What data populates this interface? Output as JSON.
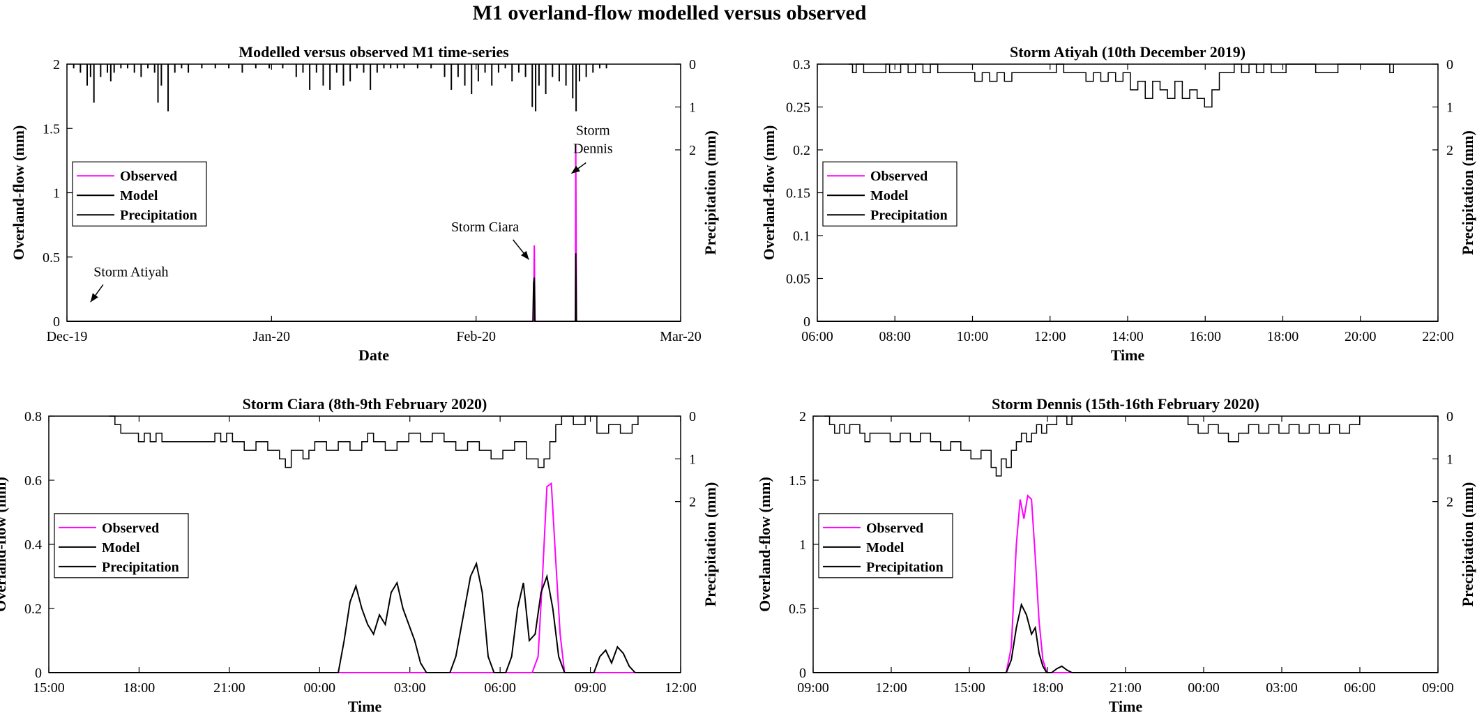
{
  "figure": {
    "title": "M1 overland-flow modelled versus observed"
  },
  "colors": {
    "observed": "#ff00ff",
    "model": "#000000",
    "precipitation": "#000000",
    "axis": "#000000"
  },
  "chart_data": [
    {
      "type": "line",
      "title": "Modelled versus observed M1 time-series",
      "xlabel": "Date",
      "ylabel": "Overland-flow (mm)",
      "y2label": "Precipitation (mm)",
      "xticks": [
        "Dec-19",
        "Jan-20",
        "Feb-20",
        "Mar-20"
      ],
      "yticks": [
        "0",
        "0.5",
        "1",
        "1.5",
        "2"
      ],
      "y2ticks": [
        "0",
        "1",
        "2"
      ],
      "ylim": [
        0,
        2
      ],
      "y2lim": [
        0,
        6
      ],
      "xlim": [
        0,
        91
      ],
      "legend": {
        "placement": "middle-left",
        "entries": [
          "Observed",
          "Model",
          "Precipitation"
        ]
      },
      "annotations": [
        {
          "text": "Storm Atiyah",
          "x": 9.5,
          "y": 0.35,
          "arrow_to": [
            3.5,
            0.15
          ]
        },
        {
          "text": "Storm Ciara",
          "x": 62,
          "y": 0.7,
          "arrow_to": [
            68.5,
            0.48
          ]
        },
        {
          "text": "Storm Dennis",
          "lines": [
            "Storm",
            "Dennis"
          ],
          "x": 78,
          "y": 1.45,
          "arrow_to": [
            74.8,
            1.15
          ]
        }
      ],
      "series": [
        {
          "name": "Observed",
          "color": "#ff00ff",
          "x": [
            0,
            69.2,
            69.3,
            69.4,
            75.4,
            75.45,
            75.55,
            91
          ],
          "values": [
            0,
            0,
            0.59,
            0,
            0,
            1.38,
            0,
            0
          ]
        },
        {
          "name": "Model",
          "color": "#000000",
          "x": [
            0,
            69.1,
            69.2,
            69.3,
            69.4,
            75.4,
            75.45,
            75.55,
            91
          ],
          "values": [
            0,
            0,
            0.3,
            0.34,
            0,
            0,
            0.53,
            0,
            0
          ]
        },
        {
          "name": "Precipitation",
          "color": "#000000",
          "bars": true,
          "x": [
            1,
            2,
            3,
            3.5,
            4,
            5,
            6,
            6.5,
            7,
            8,
            9,
            10,
            11,
            12,
            13,
            13.5,
            14,
            15,
            16,
            17,
            18,
            20,
            22,
            24,
            26,
            28,
            30,
            32,
            34,
            35,
            36,
            37,
            38,
            39,
            40,
            41,
            42,
            43,
            44,
            45,
            46,
            47,
            48,
            49,
            50,
            52,
            54,
            56,
            57,
            58,
            59,
            60,
            61,
            62,
            63,
            64,
            65,
            66,
            67,
            68,
            69,
            69.5,
            70,
            71,
            72,
            73,
            74,
            75,
            75.5,
            76,
            77,
            78,
            79,
            80
          ],
          "values": [
            0.1,
            0.2,
            0.5,
            0.3,
            0.9,
            0.3,
            0.2,
            0.4,
            0.2,
            0.1,
            0.1,
            0.2,
            0.3,
            0.1,
            0.2,
            0.9,
            0.5,
            1.1,
            0.2,
            0.1,
            0.2,
            0.1,
            0.1,
            0.1,
            0.2,
            0.1,
            0.1,
            0.1,
            0.3,
            0.2,
            0.6,
            0.2,
            0.5,
            0.6,
            0.2,
            0.5,
            0.4,
            0.1,
            0.2,
            0.6,
            0.2,
            0.1,
            0.1,
            0.1,
            0.1,
            0.1,
            0.1,
            0.3,
            0.6,
            0.3,
            0.5,
            0.7,
            0.4,
            0.2,
            0.5,
            0.2,
            0.1,
            0.4,
            0.2,
            0.3,
            1.0,
            1.1,
            0.5,
            0.7,
            0.3,
            0.4,
            0.5,
            0.8,
            1.1,
            0.4,
            0.3,
            0.2,
            0.1,
            0.1
          ]
        }
      ]
    },
    {
      "type": "line",
      "title": "Storm Atiyah (10th December 2019)",
      "xlabel": "Time",
      "ylabel": "Overland-flow (mm)",
      "y2label": "Precipitation (mm)",
      "xticks": [
        "06:00",
        "08:00",
        "10:00",
        "12:00",
        "14:00",
        "16:00",
        "18:00",
        "20:00",
        "22:00"
      ],
      "yticks": [
        "0",
        "0.05",
        "0.1",
        "0.15",
        "0.2",
        "0.25",
        "0.3"
      ],
      "y2ticks": [
        "0",
        "1",
        "2"
      ],
      "ylim": [
        0,
        0.3
      ],
      "y2lim": [
        0,
        6
      ],
      "xlim": [
        5.75,
        22.5
      ],
      "legend": {
        "placement": "middle-left",
        "entries": [
          "Observed",
          "Model",
          "Precipitation"
        ]
      },
      "series": [
        {
          "name": "Observed",
          "color": "#ff00ff",
          "x": [
            5.75,
            22.5
          ],
          "values": [
            0,
            0
          ]
        },
        {
          "name": "Model",
          "color": "#000000",
          "x": [
            5.75,
            22.5
          ],
          "values": [
            0,
            0
          ]
        },
        {
          "name": "Precipitation",
          "color": "#000000",
          "step": true,
          "x": [
            6.6,
            6.7,
            6.8,
            7.0,
            7.2,
            7.6,
            7.7,
            8.0,
            8.2,
            8.4,
            8.6,
            8.8,
            9.0,
            9.4,
            9.8,
            10.0,
            10.2,
            10.4,
            10.6,
            10.8,
            11.0,
            11.2,
            11.6,
            12.0,
            12.2,
            12.4,
            12.6,
            12.8,
            13.0,
            13.2,
            13.4,
            13.6,
            13.8,
            14.0,
            14.2,
            14.4,
            14.6,
            14.8,
            15.0,
            15.2,
            15.4,
            15.6,
            15.8,
            16.0,
            16.2,
            16.4,
            16.6,
            16.8,
            17.0,
            17.2,
            17.4,
            17.6,
            17.8,
            18.0,
            18.4,
            19.2,
            19.8,
            21.2,
            21.3
          ],
          "values": [
            0,
            0.2,
            0,
            0.2,
            0.2,
            0,
            0.2,
            0,
            0.2,
            0,
            0.2,
            0,
            0.2,
            0.2,
            0.2,
            0.4,
            0.2,
            0.4,
            0.2,
            0.4,
            0.2,
            0.2,
            0.2,
            0.2,
            0,
            0.2,
            0.2,
            0.2,
            0.4,
            0.2,
            0.4,
            0.2,
            0.4,
            0.2,
            0.6,
            0.4,
            0.8,
            0.4,
            0.6,
            0.8,
            0.4,
            0.8,
            0.6,
            0.8,
            1.0,
            0.6,
            0.2,
            0.2,
            0,
            0.2,
            0,
            0.2,
            0,
            0.2,
            0,
            0.2,
            0,
            0.2,
            0
          ]
        }
      ]
    },
    {
      "type": "line",
      "title": "Storm Ciara (8th-9th February 2020)",
      "xlabel": "Time",
      "ylabel": "Overland-flow (mm)",
      "y2label": "Precipitation (mm)",
      "xticks": [
        "15:00",
        "18:00",
        "21:00",
        "00:00",
        "03:00",
        "06:00",
        "09:00",
        "12:00"
      ],
      "yticks": [
        "0",
        "0.2",
        "0.4",
        "0.6",
        "0.8"
      ],
      "y2ticks": [
        "0",
        "1",
        "2"
      ],
      "ylim": [
        0,
        0.8
      ],
      "y2lim": [
        0,
        6
      ],
      "xlim": [
        14.75,
        36.25
      ],
      "legend": {
        "placement": "middle-left",
        "entries": [
          "Observed",
          "Model",
          "Precipitation"
        ]
      },
      "series": [
        {
          "name": "Observed",
          "color": "#ff00ff",
          "x": [
            14.75,
            31.2,
            31.4,
            31.55,
            31.7,
            31.85,
            32.0,
            32.15,
            32.3,
            36.25
          ],
          "values": [
            0,
            0,
            0.05,
            0.3,
            0.58,
            0.59,
            0.35,
            0.12,
            0,
            0
          ]
        },
        {
          "name": "Model",
          "color": "#000000",
          "x": [
            14.75,
            24.6,
            24.8,
            25.0,
            25.2,
            25.4,
            25.6,
            25.8,
            26.0,
            26.2,
            26.4,
            26.6,
            26.8,
            27.0,
            27.2,
            27.4,
            27.6,
            27.8,
            28.0,
            28.2,
            28.4,
            28.6,
            28.9,
            29.1,
            29.3,
            29.5,
            29.7,
            29.9,
            30.1,
            30.3,
            30.5,
            30.7,
            30.9,
            31.1,
            31.3,
            31.5,
            31.7,
            31.9,
            32.1,
            32.3,
            32.5,
            32.7,
            32.9,
            33.3,
            33.5,
            33.7,
            33.9,
            34.1,
            34.3,
            34.5,
            34.7,
            36.25
          ],
          "values": [
            0,
            0,
            0.1,
            0.22,
            0.27,
            0.2,
            0.15,
            0.12,
            0.18,
            0.15,
            0.25,
            0.28,
            0.2,
            0.15,
            0.1,
            0.03,
            0,
            0,
            0,
            0,
            0,
            0.05,
            0.2,
            0.3,
            0.34,
            0.25,
            0.05,
            0,
            0,
            0,
            0.05,
            0.2,
            0.28,
            0.1,
            0.12,
            0.25,
            0.3,
            0.2,
            0.05,
            0,
            0,
            0,
            0,
            0,
            0.05,
            0.07,
            0.03,
            0.08,
            0.06,
            0.02,
            0,
            0
          ]
        },
        {
          "name": "Precipitation",
          "color": "#000000",
          "step": true,
          "x": [
            16.8,
            17.0,
            17.2,
            17.8,
            18.0,
            18.2,
            18.4,
            18.6,
            19.0,
            20.0,
            20.4,
            20.6,
            20.8,
            21.0,
            21.4,
            21.8,
            22.2,
            22.6,
            22.8,
            23.0,
            23.4,
            23.6,
            23.8,
            24.2,
            24.6,
            25.0,
            25.4,
            25.6,
            25.8,
            26.2,
            26.6,
            27.0,
            27.4,
            27.8,
            28.2,
            28.6,
            29.0,
            29.4,
            29.8,
            30.2,
            30.6,
            31.0,
            31.4,
            31.6,
            31.8,
            32.0,
            32.2,
            32.6,
            33.0,
            33.4,
            33.8,
            34.2,
            34.6,
            34.8
          ],
          "values": [
            0,
            0.2,
            0.4,
            0.6,
            0.4,
            0.6,
            0.4,
            0.6,
            0.6,
            0.6,
            0.4,
            0.6,
            0.4,
            0.6,
            0.8,
            0.6,
            0.8,
            1.0,
            1.2,
            0.8,
            1.0,
            0.8,
            0.6,
            0.8,
            0.6,
            0.8,
            0.6,
            0.4,
            0.6,
            0.8,
            0.6,
            0.4,
            0.6,
            0.4,
            0.6,
            0.8,
            0.6,
            0.8,
            1.0,
            0.8,
            0.6,
            1.0,
            1.2,
            1.0,
            0.6,
            0.2,
            0,
            0.2,
            0,
            0.4,
            0.2,
            0.4,
            0.2,
            0
          ]
        }
      ]
    },
    {
      "type": "line",
      "title": "Storm Dennis (15th-16th February 2020)",
      "xlabel": "Time",
      "ylabel": "Overland-flow (mm)",
      "y2label": "Precipitation (mm)",
      "xticks": [
        "09:00",
        "12:00",
        "15:00",
        "18:00",
        "21:00",
        "00:00",
        "03:00",
        "06:00",
        "09:00"
      ],
      "yticks": [
        "0",
        "0.5",
        "1",
        "1.5",
        "2"
      ],
      "y2ticks": [
        "0",
        "1",
        "2"
      ],
      "ylim": [
        0,
        2
      ],
      "y2lim": [
        0,
        6
      ],
      "xlim": [
        8.75,
        33.5
      ],
      "legend": {
        "placement": "middle-left",
        "entries": [
          "Observed",
          "Model",
          "Precipitation"
        ]
      },
      "series": [
        {
          "name": "Observed",
          "color": "#ff00ff",
          "x": [
            8.75,
            16.4,
            16.6,
            16.8,
            16.95,
            17.1,
            17.25,
            17.4,
            17.55,
            17.7,
            17.85,
            18.0,
            33.5
          ],
          "values": [
            0,
            0,
            0.2,
            1.0,
            1.35,
            1.2,
            1.38,
            1.35,
            0.9,
            0.4,
            0.1,
            0,
            0
          ]
        },
        {
          "name": "Model",
          "color": "#000000",
          "x": [
            8.75,
            16.4,
            16.6,
            16.8,
            17.0,
            17.2,
            17.4,
            17.55,
            17.7,
            17.85,
            18.0,
            18.2,
            18.4,
            18.6,
            18.8,
            19.0,
            33.5
          ],
          "values": [
            0,
            0,
            0.1,
            0.35,
            0.53,
            0.45,
            0.3,
            0.35,
            0.15,
            0.05,
            0,
            0,
            0.03,
            0.05,
            0.02,
            0,
            0
          ]
        },
        {
          "name": "Precipitation",
          "color": "#000000",
          "step": true,
          "x": [
            9.2,
            9.4,
            9.6,
            9.8,
            10.0,
            10.2,
            10.6,
            10.8,
            11.0,
            11.4,
            11.8,
            12.2,
            12.6,
            13.0,
            13.4,
            13.8,
            14.2,
            14.6,
            15.0,
            15.4,
            15.8,
            16.0,
            16.2,
            16.4,
            16.6,
            16.8,
            17.0,
            17.2,
            17.4,
            17.6,
            17.8,
            18.0,
            18.4,
            18.8,
            19.0,
            23.6,
            24.0,
            24.4,
            24.8,
            25.2,
            25.6,
            26.0,
            26.4,
            26.8,
            27.2,
            27.6,
            28.0,
            28.4,
            28.8,
            29.2,
            29.6,
            30.0,
            30.4
          ],
          "values": [
            0,
            0.2,
            0.4,
            0.2,
            0.4,
            0.2,
            0.4,
            0.6,
            0.4,
            0.4,
            0.6,
            0.4,
            0.6,
            0.4,
            0.6,
            0.8,
            0.6,
            0.8,
            1.0,
            0.8,
            1.2,
            1.4,
            1.0,
            1.2,
            0.8,
            0.6,
            0.4,
            0.6,
            0.4,
            0.2,
            0.4,
            0.2,
            0,
            0.2,
            0,
            0.2,
            0.4,
            0.2,
            0.4,
            0.6,
            0.4,
            0.2,
            0.4,
            0.2,
            0.4,
            0.2,
            0.4,
            0.2,
            0.4,
            0.2,
            0.4,
            0.2,
            0
          ]
        }
      ]
    }
  ]
}
